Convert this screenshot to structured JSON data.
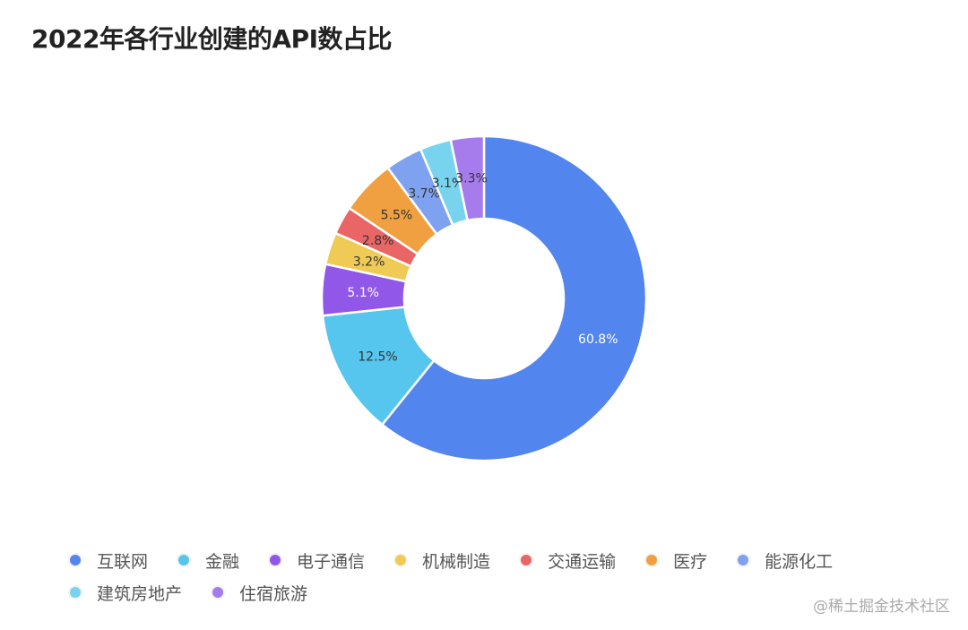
{
  "chart_data": {
    "type": "pie",
    "variant": "donut",
    "title": "2022年各行业创建的API数占比",
    "categories": [
      "互联网",
      "金融",
      "电子通信",
      "机械制造",
      "交通运输",
      "医疗",
      "能源化工",
      "建筑房地产",
      "住宿旅游"
    ],
    "values": [
      60.8,
      12.5,
      5.1,
      3.2,
      2.8,
      5.5,
      3.7,
      3.1,
      3.3
    ],
    "labels": [
      "60.8%",
      "12.5%",
      "5.1%",
      "3.2%",
      "2.8%",
      "5.5%",
      "3.7%",
      "3.1%",
      "3.3%"
    ],
    "colors": [
      "#5385ee",
      "#56c6ef",
      "#9157e8",
      "#efcb55",
      "#ea6565",
      "#f0a040",
      "#7fa2f0",
      "#78d3ee",
      "#a67cec"
    ],
    "label_colors": [
      "#ffffff",
      "#333333",
      "#ffffff",
      "#333333",
      "#333333",
      "#333333",
      "#333333",
      "#333333",
      "#333333"
    ],
    "legend_position": "bottom-left",
    "start": "top",
    "direction": "clockwise"
  },
  "watermark": "@稀土掘金技术社区"
}
